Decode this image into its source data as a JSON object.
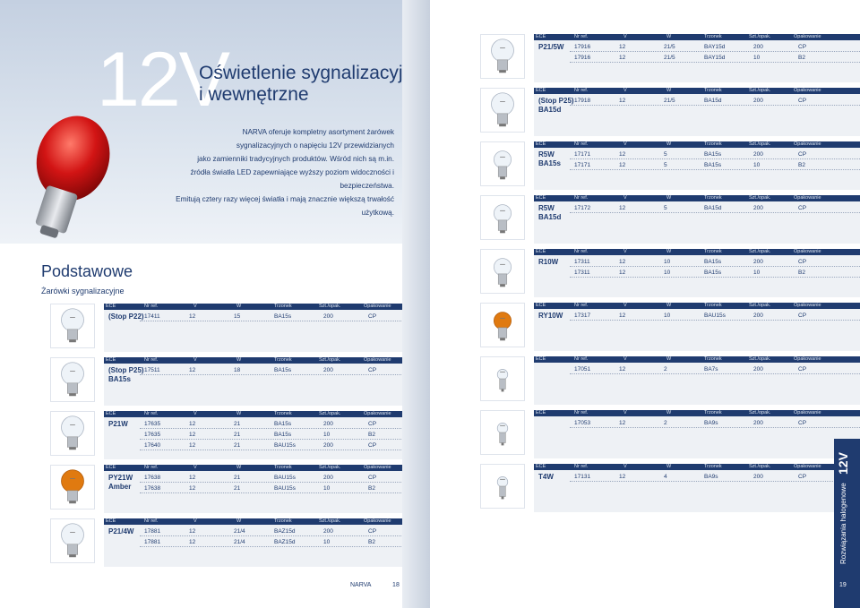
{
  "header": {
    "voltage": "12V",
    "title_line1": "Oświetlenie sygnalizacyjne",
    "title_line2": "i wewnętrzne",
    "intro": [
      "NARVA oferuje kompletny asortyment żarówek",
      "sygnalizacyjnych o napięciu 12V przewidzianych",
      "jako zamienniki tradycyjnych produktów. Wśród nich są m.in.",
      "źródła światła LED zapewniające wyższy poziom widoczności i bezpieczeństwa.",
      "Emitują cztery razy więcej światła i mają znacznie większą trwałość użytkową."
    ]
  },
  "section": {
    "title": "Podstawowe",
    "subtitle": "Żarówki sygnalizacyjne"
  },
  "table_header": [
    "ECE",
    "Nr ref.",
    "V",
    "W",
    "Trzonek",
    "Szt./opak.",
    "Opakowanie"
  ],
  "left_rows": [
    {
      "code": "(Stop P22)",
      "bulb": "clear",
      "lines": [
        [
          "17411",
          "12",
          "15",
          "BA15s",
          "200",
          "CP"
        ]
      ]
    },
    {
      "code": "(Stop P25)\nBA15s",
      "bulb": "clear",
      "lines": [
        [
          "17511",
          "12",
          "18",
          "BA15s",
          "200",
          "CP"
        ]
      ]
    },
    {
      "code": "P21W",
      "bulb": "clear",
      "lines": [
        [
          "17635",
          "12",
          "21",
          "BA15s",
          "200",
          "CP"
        ],
        [
          "17635",
          "12",
          "21",
          "BA15s",
          "10",
          "B2"
        ],
        [
          "17640",
          "12",
          "21",
          "BAU15s",
          "200",
          "CP"
        ]
      ]
    },
    {
      "code": "PY21W\nAmber",
      "bulb": "amber",
      "lines": [
        [
          "17638",
          "12",
          "21",
          "BAU15s",
          "200",
          "CP"
        ],
        [
          "17638",
          "12",
          "21",
          "BAU15s",
          "10",
          "B2"
        ]
      ]
    },
    {
      "code": "P21/4W",
      "bulb": "clear",
      "lines": [
        [
          "17881",
          "12",
          "21/4",
          "BAZ15d",
          "200",
          "CP"
        ],
        [
          "17881",
          "12",
          "21/4",
          "BAZ15d",
          "10",
          "B2"
        ]
      ]
    }
  ],
  "right_rows": [
    {
      "code": "P21/5W",
      "bulb": "clear",
      "lines": [
        [
          "17916",
          "12",
          "21/5",
          "BAY15d",
          "200",
          "CP"
        ],
        [
          "17916",
          "12",
          "21/5",
          "BAY15d",
          "10",
          "B2"
        ]
      ]
    },
    {
      "code": "(Stop P25)\nBA15d",
      "bulb": "clear",
      "lines": [
        [
          "17918",
          "12",
          "21/5",
          "BA15d",
          "200",
          "CP"
        ]
      ]
    },
    {
      "code": "R5W\nBA15s",
      "bulb": "small",
      "lines": [
        [
          "17171",
          "12",
          "5",
          "BA15s",
          "200",
          "CP"
        ],
        [
          "17171",
          "12",
          "5",
          "BA15s",
          "10",
          "B2"
        ]
      ]
    },
    {
      "code": "R5W\nBA15d",
      "bulb": "small",
      "lines": [
        [
          "17172",
          "12",
          "5",
          "BA15d",
          "200",
          "CP"
        ]
      ]
    },
    {
      "code": "R10W",
      "bulb": "small",
      "lines": [
        [
          "17311",
          "12",
          "10",
          "BA15s",
          "200",
          "CP"
        ],
        [
          "17311",
          "12",
          "10",
          "BA15s",
          "10",
          "B2"
        ]
      ]
    },
    {
      "code": "RY10W",
      "bulb": "amber-small",
      "lines": [
        [
          "17317",
          "12",
          "10",
          "BAU15s",
          "200",
          "CP"
        ]
      ]
    },
    {
      "code": "",
      "bulb": "tiny",
      "lines": [
        [
          "17051",
          "12",
          "2",
          "BA7s",
          "200",
          "CP"
        ]
      ]
    },
    {
      "code": "",
      "bulb": "tiny",
      "lines": [
        [
          "17053",
          "12",
          "2",
          "BA9s",
          "200",
          "CP"
        ]
      ]
    },
    {
      "code": "T4W",
      "bulb": "tiny",
      "lines": [
        [
          "17131",
          "12",
          "4",
          "BA9s",
          "200",
          "CP"
        ]
      ]
    }
  ],
  "footer": {
    "brand": "NARVA",
    "page_left": "18",
    "page_right": "19",
    "side_tab_label": "Rozwiązania halogenowe",
    "side_tab_voltage": "12V"
  },
  "colors": {
    "navy": "#1f3b6f",
    "panel": "#eef1f5",
    "amber": "#e07a10",
    "red": "#d21414"
  }
}
